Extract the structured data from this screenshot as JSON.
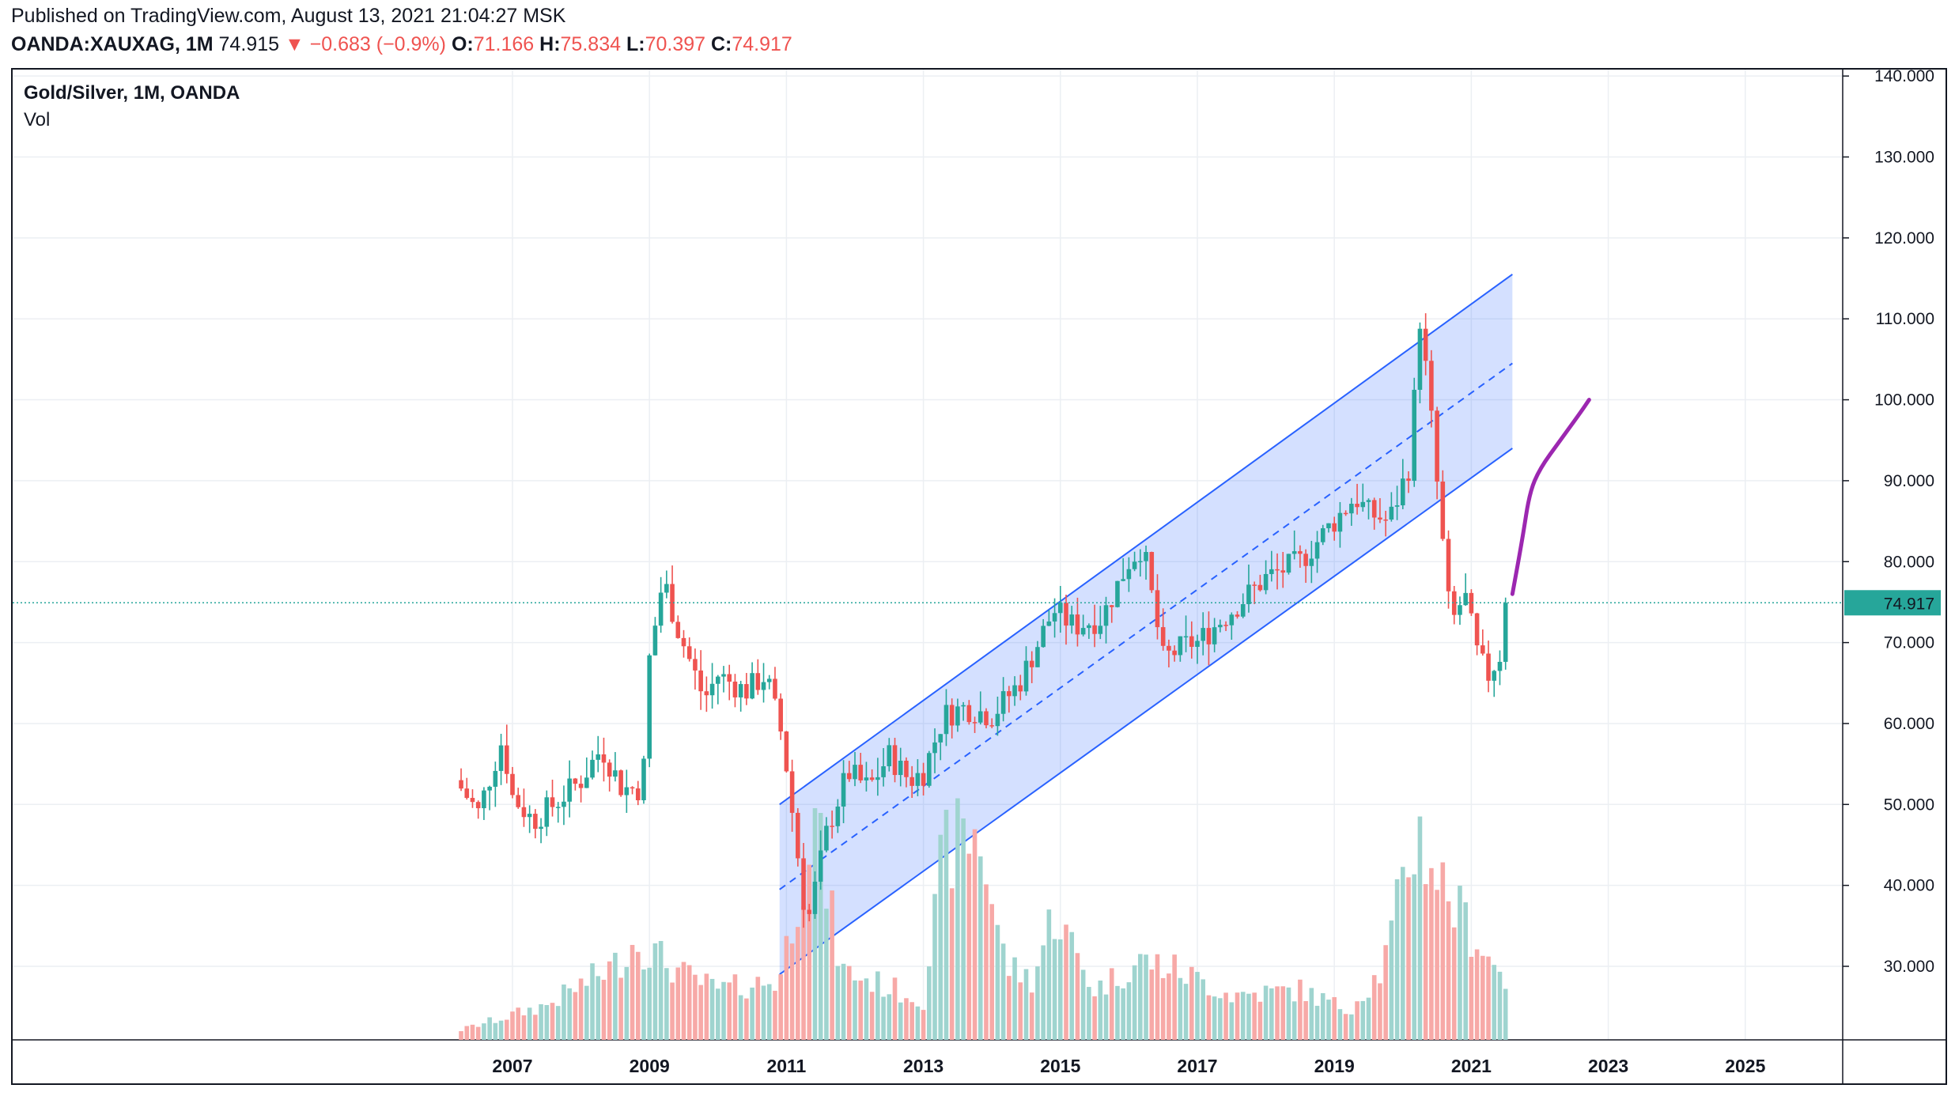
{
  "header": {
    "published": "Published on TradingView.com, August 13, 2021 21:04:27 MSK",
    "symbol": "OANDA:XAUXAG, 1M",
    "last": "74.915",
    "change": "▼ −0.683 (−0.9%)",
    "o_label": "O:",
    "o_value": "71.166",
    "h_label": "H:",
    "h_value": "75.834",
    "l_label": "L:",
    "l_value": "70.397",
    "c_label": "C:",
    "c_value": "74.917"
  },
  "chart_data": {
    "type": "candlestick",
    "title": "Gold/Silver, 1M, OANDA",
    "volume_label": "Vol",
    "last_price": 74.917,
    "last_price_label": "74.917",
    "ylim": [
      20.0,
      141.0
    ],
    "y_ticks": [
      30,
      40,
      50,
      60,
      70,
      80,
      90,
      100,
      110,
      120,
      130,
      140
    ],
    "y_tick_labels": [
      "30.000",
      "40.000",
      "50.000",
      "60.000",
      "70.000",
      "80.000",
      "90.000",
      "100.000",
      "110.000",
      "120.000",
      "130.000",
      "140.000"
    ],
    "x_ticks": [
      2007,
      2009,
      2011,
      2013,
      2015,
      2017,
      2019,
      2021,
      2023,
      2025
    ],
    "x_tick_labels": [
      "2007",
      "2009",
      "2011",
      "2013",
      "2015",
      "2017",
      "2019",
      "2021",
      "2023",
      "2025"
    ],
    "xlim": [
      2005.5,
      2027.5
    ],
    "grid": true,
    "colors": {
      "up": "#26a69a",
      "down": "#ef5350",
      "up_volume": "#9fd4cf",
      "down_volume": "#f7a9a7",
      "channel_line": "#2962ff",
      "channel_fill": "#2962ff",
      "projection": "#9c27b0",
      "price_line": "#26a69a"
    },
    "anchors": [
      {
        "t": 2006.25,
        "c": 52.0
      },
      {
        "t": 2006.5,
        "c": 49.0
      },
      {
        "t": 2006.85,
        "c": 58.0
      },
      {
        "t": 2007.0,
        "c": 51.0
      },
      {
        "t": 2007.3,
        "c": 48.0
      },
      {
        "t": 2007.6,
        "c": 50.0
      },
      {
        "t": 2008.0,
        "c": 53.0
      },
      {
        "t": 2008.3,
        "c": 57.0
      },
      {
        "t": 2008.6,
        "c": 52.0
      },
      {
        "t": 2008.9,
        "c": 52.0
      },
      {
        "t": 2009.0,
        "c": 68.0
      },
      {
        "t": 2009.2,
        "c": 78.0
      },
      {
        "t": 2009.4,
        "c": 72.0
      },
      {
        "t": 2009.8,
        "c": 63.0
      },
      {
        "t": 2010.0,
        "c": 66.0
      },
      {
        "t": 2010.4,
        "c": 64.0
      },
      {
        "t": 2010.7,
        "c": 66.0
      },
      {
        "t": 2010.95,
        "c": 58.0
      },
      {
        "t": 2011.1,
        "c": 48.0
      },
      {
        "t": 2011.3,
        "c": 35.0
      },
      {
        "t": 2011.6,
        "c": 47.0
      },
      {
        "t": 2011.9,
        "c": 54.0
      },
      {
        "t": 2012.2,
        "c": 52.0
      },
      {
        "t": 2012.5,
        "c": 56.0
      },
      {
        "t": 2012.8,
        "c": 53.0
      },
      {
        "t": 2013.0,
        "c": 54.0
      },
      {
        "t": 2013.3,
        "c": 61.0
      },
      {
        "t": 2013.6,
        "c": 62.0
      },
      {
        "t": 2014.0,
        "c": 61.0
      },
      {
        "t": 2014.4,
        "c": 65.0
      },
      {
        "t": 2014.9,
        "c": 74.0
      },
      {
        "t": 2015.2,
        "c": 72.0
      },
      {
        "t": 2015.6,
        "c": 73.0
      },
      {
        "t": 2016.0,
        "c": 80.0
      },
      {
        "t": 2016.2,
        "c": 82.0
      },
      {
        "t": 2016.5,
        "c": 68.0
      },
      {
        "t": 2016.9,
        "c": 70.0
      },
      {
        "t": 2017.0,
        "c": 70.0
      },
      {
        "t": 2017.5,
        "c": 74.0
      },
      {
        "t": 2018.0,
        "c": 78.0
      },
      {
        "t": 2018.5,
        "c": 80.0
      },
      {
        "t": 2018.9,
        "c": 84.0
      },
      {
        "t": 2019.3,
        "c": 88.0
      },
      {
        "t": 2019.5,
        "c": 86.0
      },
      {
        "t": 2019.8,
        "c": 85.0
      },
      {
        "t": 2020.1,
        "c": 92.0
      },
      {
        "t": 2020.25,
        "c": 110.0
      },
      {
        "t": 2020.4,
        "c": 99.0
      },
      {
        "t": 2020.55,
        "c": 85.0
      },
      {
        "t": 2020.7,
        "c": 72.0
      },
      {
        "t": 2020.9,
        "c": 76.0
      },
      {
        "t": 2021.1,
        "c": 68.0
      },
      {
        "t": 2021.25,
        "c": 66.0
      },
      {
        "t": 2021.45,
        "c": 69.0
      },
      {
        "t": 2021.58,
        "c": 74.917
      }
    ],
    "volume_anchors": [
      {
        "t": 2006.25,
        "v": 2
      },
      {
        "t": 2007.5,
        "v": 7
      },
      {
        "t": 2008.5,
        "v": 15
      },
      {
        "t": 2008.8,
        "v": 20
      },
      {
        "t": 2009.5,
        "v": 13
      },
      {
        "t": 2010.0,
        "v": 10
      },
      {
        "t": 2010.9,
        "v": 12
      },
      {
        "t": 2011.4,
        "v": 45
      },
      {
        "t": 2011.8,
        "v": 14
      },
      {
        "t": 2012.6,
        "v": 10
      },
      {
        "t": 2013.0,
        "v": 8
      },
      {
        "t": 2013.3,
        "v": 38
      },
      {
        "t": 2013.8,
        "v": 42
      },
      {
        "t": 2014.2,
        "v": 15
      },
      {
        "t": 2014.6,
        "v": 12
      },
      {
        "t": 2014.9,
        "v": 26
      },
      {
        "t": 2015.5,
        "v": 10
      },
      {
        "t": 2016.2,
        "v": 16
      },
      {
        "t": 2016.7,
        "v": 14
      },
      {
        "t": 2017.5,
        "v": 9
      },
      {
        "t": 2018.5,
        "v": 10
      },
      {
        "t": 2019.2,
        "v": 6
      },
      {
        "t": 2019.7,
        "v": 14
      },
      {
        "t": 2020.2,
        "v": 42
      },
      {
        "t": 2020.7,
        "v": 28
      },
      {
        "t": 2021.0,
        "v": 22
      },
      {
        "t": 2021.58,
        "v": 10
      }
    ],
    "channel": {
      "start": {
        "t": 2010.9,
        "lower": 29.0,
        "mid": 39.5,
        "upper": 50.0
      },
      "end": {
        "t": 2021.6,
        "lower": 94.0,
        "mid": 104.5,
        "upper": 115.5
      }
    },
    "projection": [
      {
        "t": 2021.6,
        "p": 76.0
      },
      {
        "t": 2021.75,
        "p": 83.0
      },
      {
        "t": 2021.85,
        "p": 88.5
      },
      {
        "t": 2022.0,
        "p": 91.5
      },
      {
        "t": 2022.3,
        "p": 95.0
      },
      {
        "t": 2022.6,
        "p": 98.5
      },
      {
        "t": 2022.72,
        "p": 100.0
      }
    ]
  }
}
